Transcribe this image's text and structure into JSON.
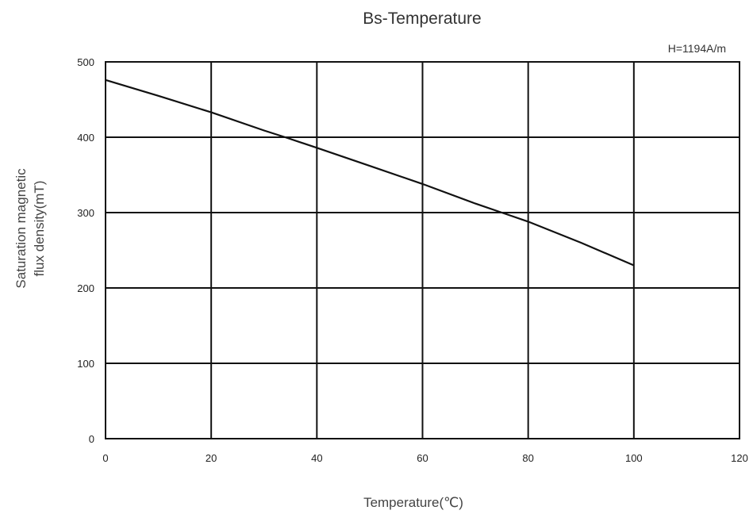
{
  "chart_data": {
    "type": "line",
    "title": "Bs-Temperature",
    "annotation": "H=1194A/m",
    "xlabel": "Temperature(℃)",
    "ylabel_lines": [
      "Saturation magnetic",
      "flux density(mT)"
    ],
    "xlim": [
      0,
      120
    ],
    "ylim": [
      0,
      500
    ],
    "x_ticks": [
      0,
      20,
      40,
      60,
      80,
      100,
      120
    ],
    "y_ticks": [
      0,
      100,
      200,
      300,
      400,
      500
    ],
    "grid": true,
    "series": [
      {
        "x": [
          0,
          10,
          20,
          30,
          34,
          40,
          50,
          60,
          70,
          75,
          80,
          90,
          100
        ],
        "y": [
          476,
          455,
          433,
          409,
          400,
          386,
          362,
          338,
          312,
          300,
          288,
          260,
          230
        ]
      }
    ]
  }
}
